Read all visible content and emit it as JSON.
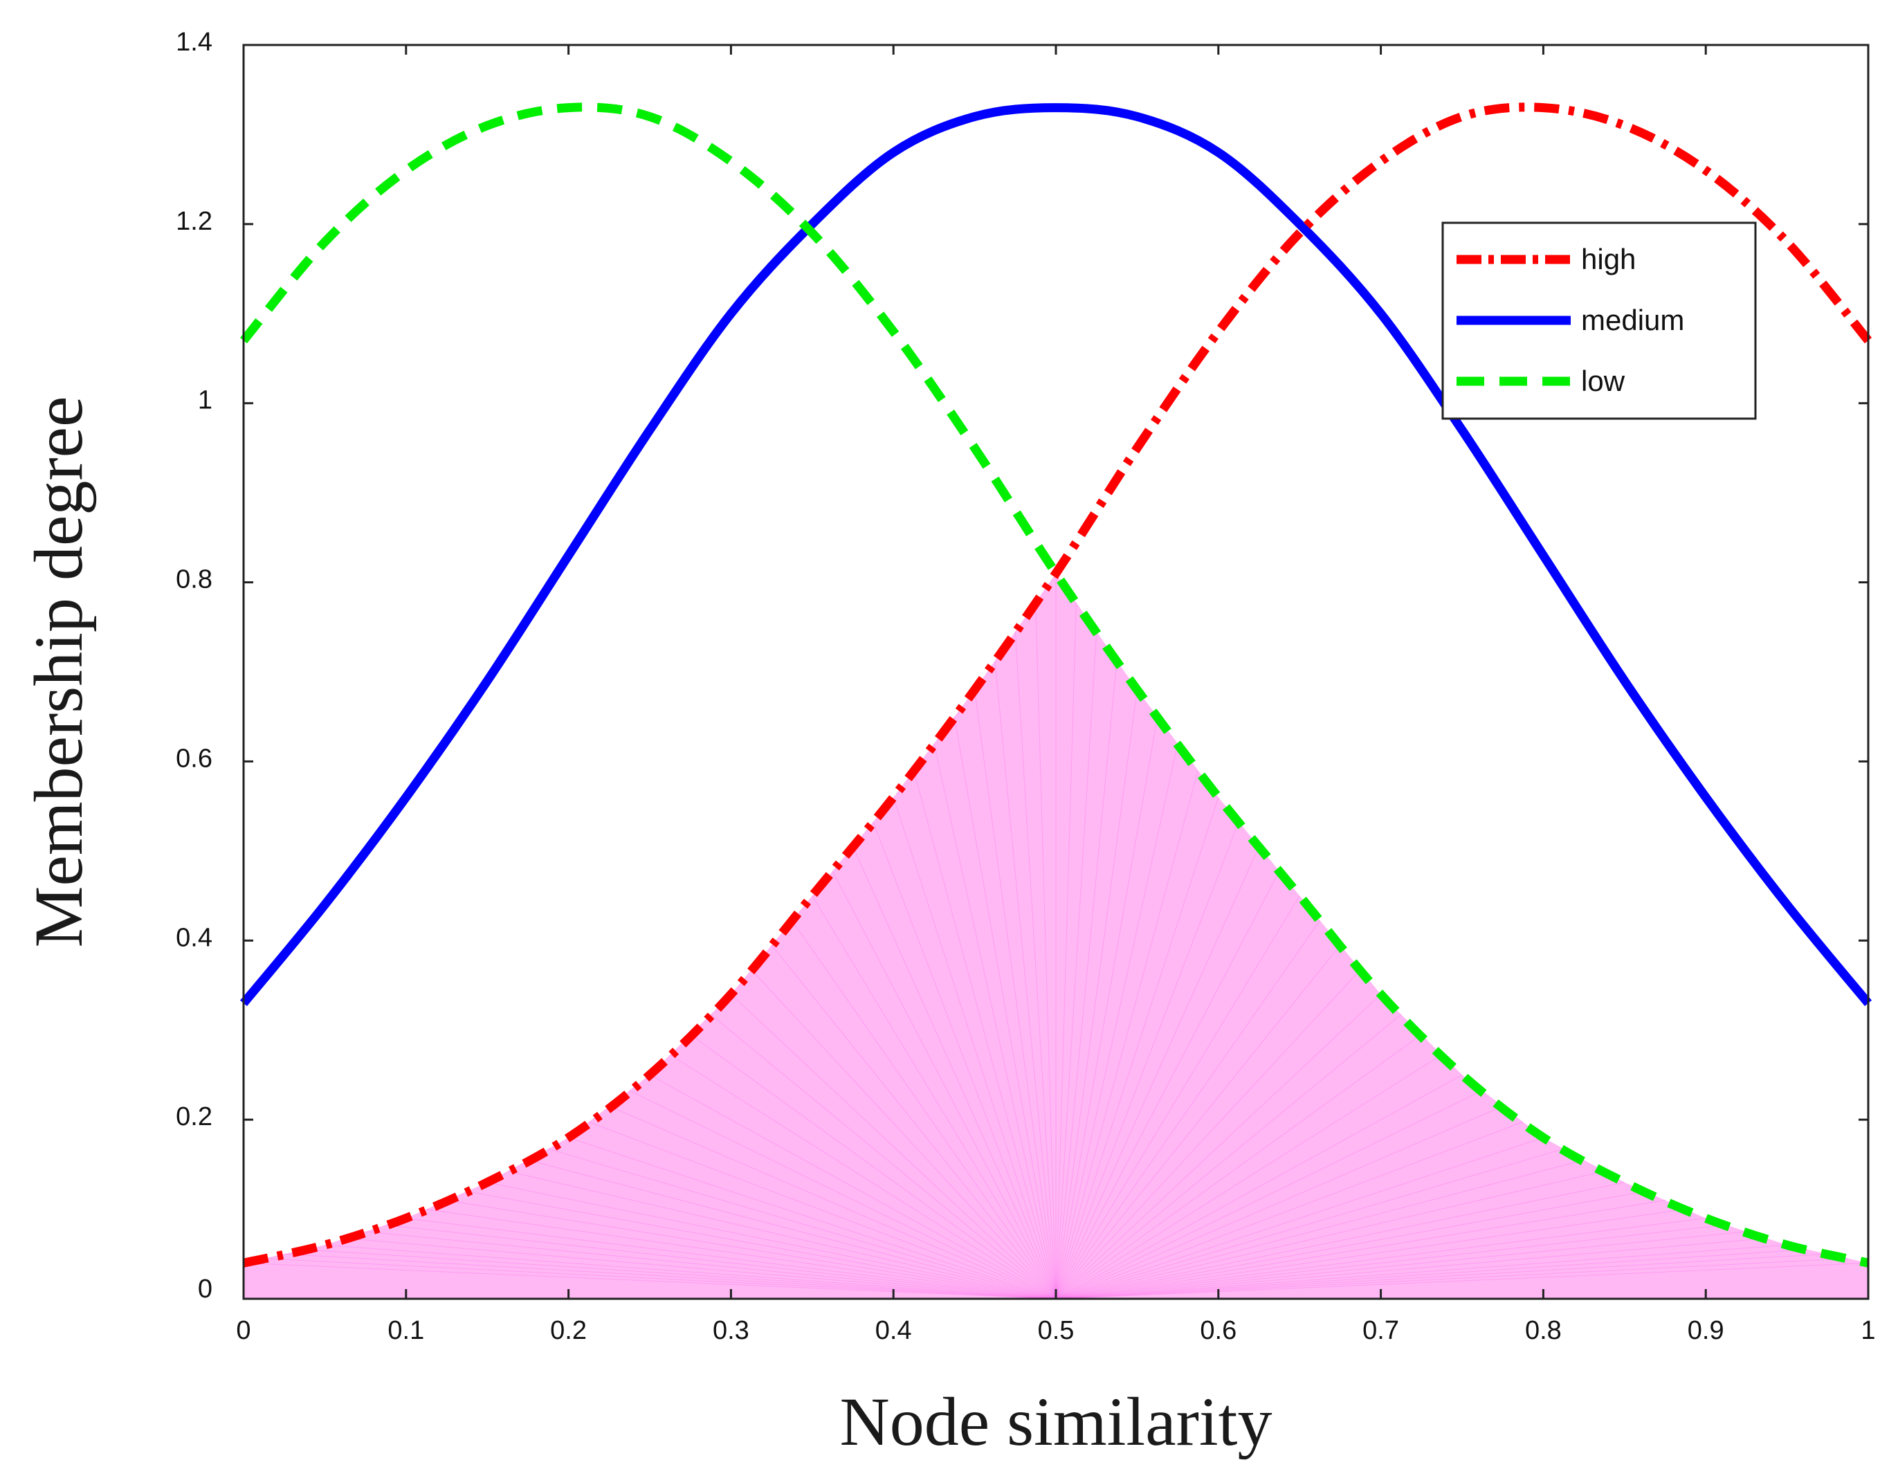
{
  "chart_data": {
    "type": "line",
    "title": "",
    "xlabel": "Node similarity",
    "ylabel": "Membership degree",
    "xlim": [
      0,
      1
    ],
    "ylim": [
      0,
      1.4
    ],
    "x_ticks": [
      0,
      0.1,
      0.2,
      0.3,
      0.4,
      0.5,
      0.6,
      0.7,
      0.8,
      0.9,
      1
    ],
    "x_tick_labels": [
      "0",
      "0.1",
      "0.2",
      "0.3",
      "0.4",
      "0.5",
      "0.6",
      "0.7",
      "0.8",
      "0.9",
      "1"
    ],
    "y_ticks": [
      0,
      0.2,
      0.4,
      0.6,
      0.8,
      1,
      1.2,
      1.4
    ],
    "y_tick_labels": [
      "0",
      "0.2",
      "0.4",
      "0.6",
      "0.8",
      "1",
      "1.2",
      "1.4"
    ],
    "grid": false,
    "legend_position": "top-right",
    "x": [
      0,
      0.05,
      0.1,
      0.15,
      0.2,
      0.25,
      0.3,
      0.35,
      0.4,
      0.45,
      0.5,
      0.55,
      0.6,
      0.65,
      0.7,
      0.75,
      0.8,
      0.85,
      0.9,
      0.95,
      1
    ],
    "series": [
      {
        "name": "high",
        "style": "dash-dot",
        "color": "#ff0000",
        "values": [
          0.04,
          0.06,
          0.09,
          0.13,
          0.18,
          0.25,
          0.34,
          0.45,
          0.56,
          0.68,
          0.81,
          0.95,
          1.08,
          1.19,
          1.27,
          1.32,
          1.33,
          1.31,
          1.26,
          1.18,
          1.07
        ]
      },
      {
        "name": "medium",
        "style": "solid",
        "color": "#0000ff",
        "values": [
          0.33,
          0.44,
          0.56,
          0.69,
          0.83,
          0.97,
          1.1,
          1.2,
          1.28,
          1.32,
          1.33,
          1.32,
          1.28,
          1.2,
          1.1,
          0.97,
          0.83,
          0.69,
          0.56,
          0.44,
          0.33
        ]
      },
      {
        "name": "low",
        "style": "dashed",
        "color": "#00ee00",
        "values": [
          1.07,
          1.18,
          1.26,
          1.31,
          1.33,
          1.32,
          1.27,
          1.19,
          1.08,
          0.95,
          0.81,
          0.68,
          0.56,
          0.45,
          0.34,
          0.25,
          0.18,
          0.13,
          0.09,
          0.06,
          0.04
        ]
      }
    ],
    "fill_region": {
      "description": "min(high, low) region shaded",
      "color": "#ffb8f4",
      "line_color": "#ff66ee"
    }
  }
}
